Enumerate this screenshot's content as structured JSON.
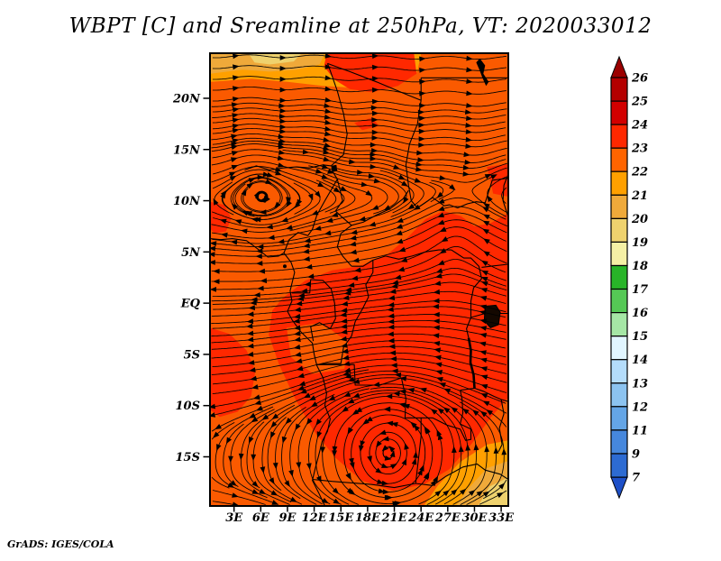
{
  "title": "WBPT [C] and Sreamline at 250hPa, VT: 2020033012",
  "attribution": "GrADS: IGES/COLA",
  "chart_data": {
    "type": "streamline-shaded-map",
    "variable": "WBPT [C]",
    "pressure_level": "250hPa",
    "valid_time": "2020033012",
    "title": "WBPT [C] and Sreamline at 250hPa, VT: 2020033012",
    "map_extent": {
      "lon_min": 0.3,
      "lon_max": 33.8,
      "lat_min": -19.8,
      "lat_max": 24.4
    },
    "lon_ticks": [
      {
        "value": 3,
        "label": "3E"
      },
      {
        "value": 6,
        "label": "6E"
      },
      {
        "value": 9,
        "label": "9E"
      },
      {
        "value": 12,
        "label": "12E"
      },
      {
        "value": 15,
        "label": "15E"
      },
      {
        "value": 18,
        "label": "18E"
      },
      {
        "value": 21,
        "label": "21E"
      },
      {
        "value": 24,
        "label": "24E"
      },
      {
        "value": 27,
        "label": "27E"
      },
      {
        "value": 30,
        "label": "30E"
      },
      {
        "value": 33,
        "label": "33E"
      }
    ],
    "lat_ticks": [
      {
        "value": 20,
        "label": "20N"
      },
      {
        "value": 15,
        "label": "15N"
      },
      {
        "value": 10,
        "label": "10N"
      },
      {
        "value": 5,
        "label": "5N"
      },
      {
        "value": 0,
        "label": "EQ"
      },
      {
        "value": -5,
        "label": "5S"
      },
      {
        "value": -10,
        "label": "10S"
      },
      {
        "value": -15,
        "label": "15S"
      }
    ],
    "colorbar": {
      "boundary_labels_top_to_bottom": [
        "26",
        "25",
        "24",
        "23",
        "22",
        "21",
        "20",
        "19",
        "18",
        "17",
        "16",
        "15",
        "14",
        "13",
        "12",
        "11",
        "9",
        "7"
      ],
      "segment_colors_top_to_bottom": [
        "#B40000",
        "#D20000",
        "#FF2800",
        "#FF6400",
        "#FFA000",
        "#EFA93A",
        "#EFD26E",
        "#F5F0A5",
        "#28B428",
        "#55C855",
        "#A5E6A5",
        "#E1F5FF",
        "#B4DCFA",
        "#8CC3F0",
        "#64A5E6",
        "#4687DC",
        "#2D6BD2"
      ],
      "over_arrow_color": "#9B0000",
      "under_arrow_color": "#1E50C8"
    },
    "shaded_field": {
      "base_level": "22-23",
      "base_color": "#FA5A00",
      "regions": [
        {
          "level": "21-22",
          "color": "#FFA000",
          "pts": [
            [
              0.3,
              24.4
            ],
            [
              24,
              24.4
            ],
            [
              23.6,
              22.6
            ],
            [
              21,
              21.6
            ],
            [
              17,
              21.0
            ],
            [
              13,
              21.2
            ],
            [
              9,
              21.6
            ],
            [
              5,
              21.9
            ],
            [
              0.3,
              21.6
            ]
          ]
        },
        {
          "level": "20-21",
          "color": "#EFA93A",
          "pts": [
            [
              0.3,
              24.4
            ],
            [
              13.2,
              24.4
            ],
            [
              12.6,
              23.3
            ],
            [
              10,
              22.8
            ],
            [
              7,
              22.6
            ],
            [
              4,
              22.8
            ],
            [
              0.3,
              22.4
            ]
          ]
        },
        {
          "level": "19-20",
          "color": "#EFD26E",
          "pts": [
            [
              4.6,
              24.4
            ],
            [
              10.6,
              24.4
            ],
            [
              9.7,
              23.6
            ],
            [
              7,
              23.3
            ],
            [
              5.3,
              23.5
            ]
          ]
        },
        {
          "level": "23-24",
          "color": "#FF2800",
          "pts": [
            [
              13.4,
              24.4
            ],
            [
              23.2,
              24.4
            ],
            [
              23.5,
              22.4
            ],
            [
              21.4,
              21.2
            ],
            [
              18.5,
              20.6
            ],
            [
              16,
              20.9
            ],
            [
              14.3,
              21.8
            ],
            [
              13.1,
              23.1
            ]
          ]
        },
        {
          "level": "23-24",
          "color": "#FF2800",
          "pts": [
            [
              8.5,
              0.5
            ],
            [
              11,
              2.2
            ],
            [
              14,
              3.2
            ],
            [
              17,
              3.6
            ],
            [
              20,
              4.6
            ],
            [
              22.5,
              6.4
            ],
            [
              24.5,
              8.2
            ],
            [
              26.5,
              9.0
            ],
            [
              28.5,
              8.5
            ],
            [
              30,
              7.5
            ],
            [
              31.8,
              7.8
            ],
            [
              33.8,
              8.8
            ],
            [
              33.8,
              -9.2
            ],
            [
              31.8,
              -11.2
            ],
            [
              29.8,
              -13.6
            ],
            [
              27.2,
              -16.2
            ],
            [
              24.3,
              -17.7
            ],
            [
              20.8,
              -18.3
            ],
            [
              17.3,
              -17.3
            ],
            [
              14.4,
              -15.1
            ],
            [
              11.9,
              -12.4
            ],
            [
              9.9,
              -9.4
            ],
            [
              8.1,
              -6.1
            ],
            [
              6.9,
              -3.1
            ],
            [
              7.3,
              -0.7
            ]
          ]
        },
        {
          "level": "22-23",
          "color": "#FA5A00",
          "pts": [
            [
              8.9,
              -2.4
            ],
            [
              12.8,
              -1.9
            ],
            [
              15.8,
              -3.8
            ],
            [
              15.4,
              -6.4
            ],
            [
              11.9,
              -6.9
            ],
            [
              9.4,
              -5.3
            ]
          ]
        },
        {
          "level": "23-24",
          "color": "#FF2800",
          "pts": [
            [
              0.3,
              -2.4
            ],
            [
              2.5,
              -3.0
            ],
            [
              4.4,
              -4.6
            ],
            [
              5.4,
              -6.6
            ],
            [
              4.9,
              -9.1
            ],
            [
              3.4,
              -10.6
            ],
            [
              1.4,
              -11.1
            ],
            [
              0.3,
              -10.4
            ]
          ]
        },
        {
          "level": "23-24",
          "color": "#FF2800",
          "pts": [
            [
              0.3,
              9.9
            ],
            [
              1.9,
              9.6
            ],
            [
              2.7,
              8.3
            ],
            [
              2.1,
              7.0
            ],
            [
              0.8,
              6.8
            ],
            [
              0.3,
              7.3
            ]
          ]
        },
        {
          "level": "23-24",
          "color": "#FF2800",
          "pts": [
            [
              31.4,
              13.3
            ],
            [
              33.8,
              13.6
            ],
            [
              33.8,
              10.4
            ],
            [
              32.1,
              10.7
            ]
          ]
        },
        {
          "level": "23-24",
          "color": "#FF2800",
          "pts": [
            [
              16.5,
              17.6
            ],
            [
              18.5,
              18.1
            ],
            [
              19.3,
              17.3
            ],
            [
              17.4,
              16.9
            ]
          ]
        },
        {
          "level": "21-22",
          "color": "#FFA000",
          "pts": [
            [
              24.3,
              -19.8
            ],
            [
              33.8,
              -19.8
            ],
            [
              33.8,
              -13.4
            ],
            [
              31.4,
              -13.8
            ],
            [
              28.4,
              -15.5
            ],
            [
              25.9,
              -17.8
            ]
          ]
        },
        {
          "level": "20-21",
          "color": "#EFA93A",
          "pts": [
            [
              27.9,
              -19.8
            ],
            [
              33.8,
              -19.8
            ],
            [
              33.8,
              -15.4
            ],
            [
              31.4,
              -16.1
            ],
            [
              29.4,
              -18.0
            ]
          ]
        },
        {
          "level": "19-20",
          "color": "#EFD26E",
          "pts": [
            [
              30.4,
              -19.8
            ],
            [
              33.8,
              -19.8
            ],
            [
              33.8,
              -17.0
            ],
            [
              31.7,
              -17.9
            ]
          ]
        }
      ]
    },
    "flow_profile": {
      "jet_north": {
        "amp": 0.85,
        "lat0": 10.5,
        "scale": 1.8
      },
      "jet_south": {
        "amp": 0.75,
        "lat0": -18.3,
        "scale": 1.2
      },
      "easterly": {
        "amp": 0.95,
        "lat_south": -10.6,
        "s1": 2.2,
        "lat_north": 9.5,
        "s2": 1.8
      },
      "wave": {
        "amp": 0.1,
        "k": 0.85,
        "phase": 1.0,
        "lat0": 11,
        "scale": 2
      }
    },
    "flow_features": [
      {
        "name": "anticyclonic-gyre-west-africa",
        "lon": 6.2,
        "lat": 10.6,
        "strength": 0.5,
        "radius_deg": 3.0,
        "rotation": "clockwise"
      },
      {
        "name": "trough-east",
        "lon": 28.0,
        "lat": 6.5,
        "strength": -0.45,
        "radius_deg": 4.5,
        "rotation": "counterclockwise"
      },
      {
        "name": "closed-anticyclone-south",
        "lon": 20.3,
        "lat": -14.6,
        "strength": -1.05,
        "radius_deg": 5.5,
        "rotation": "counterclockwise"
      }
    ]
  }
}
